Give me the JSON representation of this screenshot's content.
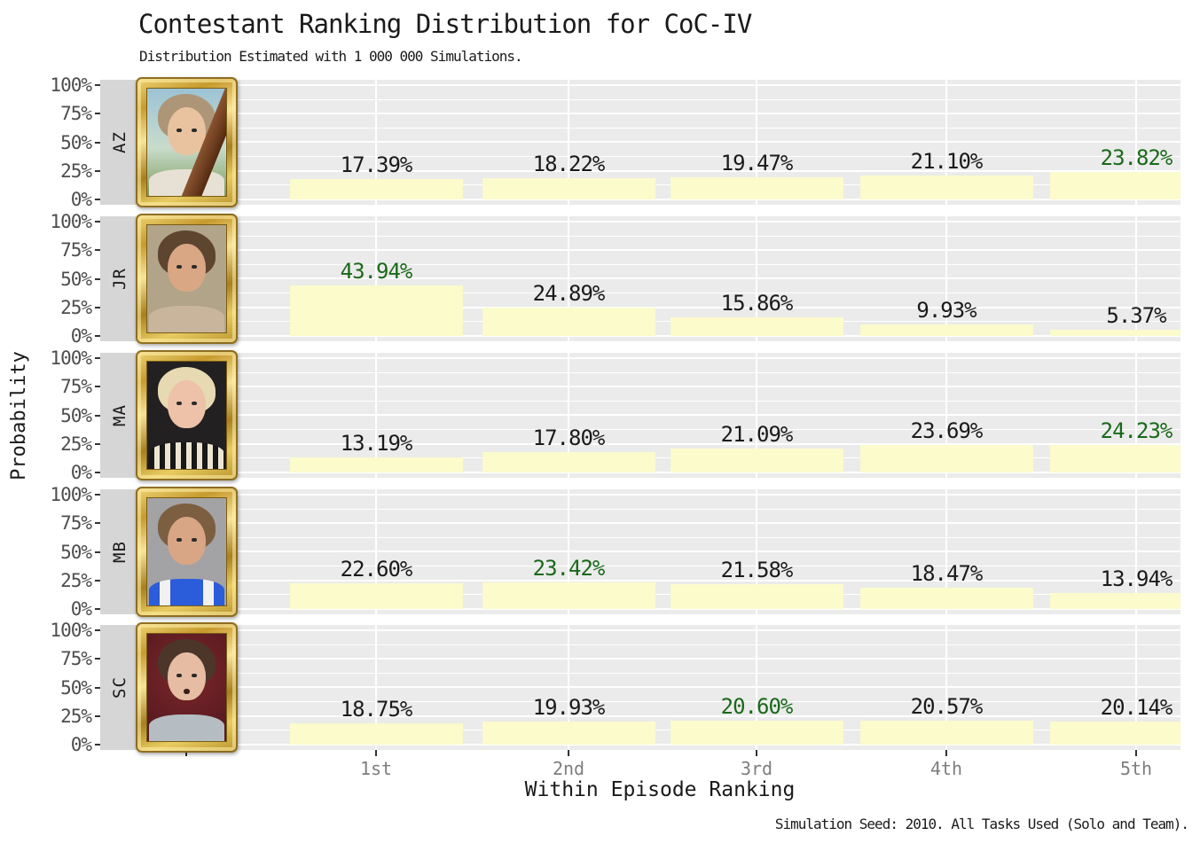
{
  "title": "Contestant Ranking Distribution for CoC-IV",
  "subtitle": "Distribution Estimated with 1 000 000 Simulations.",
  "caption": "Simulation Seed: 2010. All Tasks Used (Solo and Team).",
  "axes": {
    "y_title": "Probability",
    "x_title": "Within Episode Ranking",
    "y_tick_labels": [
      "100%",
      "75%",
      "50%",
      "25%",
      "0%"
    ],
    "x_tick_labels": [
      "1st",
      "2nd",
      "3rd",
      "4th",
      "5th"
    ]
  },
  "colors": {
    "panel_bg": "#ebebeb",
    "strip_bg": "#d6d6d6",
    "gridline": "#ffffff",
    "bar_fill": "#fbfbcc",
    "label_default": "#1a1a1a",
    "label_max": "#1a691a",
    "y_tick_text": "#4d4d4d",
    "x_tick_text": "#7e7e7e",
    "tick_mark": "#333333"
  },
  "chart_data": {
    "type": "bar",
    "layout": "faceted, one horizontal panel per contestant, shared x axis",
    "categories": [
      "1st",
      "2nd",
      "3rd",
      "4th",
      "5th"
    ],
    "xlabel": "Within Episode Ranking",
    "ylabel": "Probability",
    "ylim": [
      0,
      100
    ],
    "y_major_gridlines_pct": [
      0,
      25,
      50,
      75,
      100
    ],
    "y_minor_gridlines_pct": [
      12.5,
      37.5,
      62.5,
      87.5
    ],
    "value_label_format": "0.00%",
    "max_value_label_color": "#1a691a",
    "series": [
      {
        "name": "AZ",
        "values": [
          17.39,
          18.22,
          19.47,
          21.1,
          23.82
        ],
        "max_index": 4
      },
      {
        "name": "JR",
        "values": [
          43.94,
          24.89,
          15.86,
          9.93,
          5.37
        ],
        "max_index": 0
      },
      {
        "name": "MA",
        "values": [
          13.19,
          17.8,
          21.09,
          23.69,
          24.23
        ],
        "max_index": 4
      },
      {
        "name": "MB",
        "values": [
          22.6,
          23.42,
          21.58,
          18.47,
          13.94
        ],
        "max_index": 1
      },
      {
        "name": "SC",
        "values": [
          18.75,
          19.93,
          20.6,
          20.57,
          20.14
        ],
        "max_index": 2
      }
    ]
  },
  "contestants": [
    {
      "initials": "AZ",
      "portrait": {
        "bg": "linear-gradient(180deg,#9cc3d5 0%,#c9dccc 55%,#7e9c5d 100%)",
        "hair": "#ad9678",
        "skin": "#e9c3a0",
        "shirt": "#e6e1d4",
        "features": [
          "beam"
        ]
      }
    },
    {
      "initials": "JR",
      "portrait": {
        "bg": "#b1a489",
        "hair": "#5d452f",
        "skin": "#d9a783",
        "shirt": "#c8b59c",
        "features": []
      }
    },
    {
      "initials": "MA",
      "portrait": {
        "bg": "#232021",
        "hair": "#e7dab2",
        "skin": "#edc2a9",
        "shirt": "repeating-linear-gradient(90deg,#181818 0px,#181818 6px,#ece5d2 6px,#ece5d2 12px)",
        "features": []
      }
    },
    {
      "initials": "MB",
      "portrait": {
        "bg": "#a3a3a5",
        "hair": "#7c5e40",
        "skin": "#d8a685",
        "shirt": "linear-gradient(90deg,#2b5cd9 0%,#2b5cd9 14%,#f1f1f1 14%,#f1f1f1 28%,#2b5cd9 28%,#2b5cd9 72%,#f1f1f1 72%,#f1f1f1 86%,#2b5cd9 86%,#2b5cd9 100%)",
        "features": []
      }
    },
    {
      "initials": "SC",
      "portrait": {
        "bg": "radial-gradient(circle at 50% 38%,#7c272c 0%,#5a1b21 75%)",
        "hair": "#4c362a",
        "skin": "#e6bda2",
        "shirt": "#b5bdc2",
        "features": [
          "mouth"
        ]
      }
    }
  ]
}
